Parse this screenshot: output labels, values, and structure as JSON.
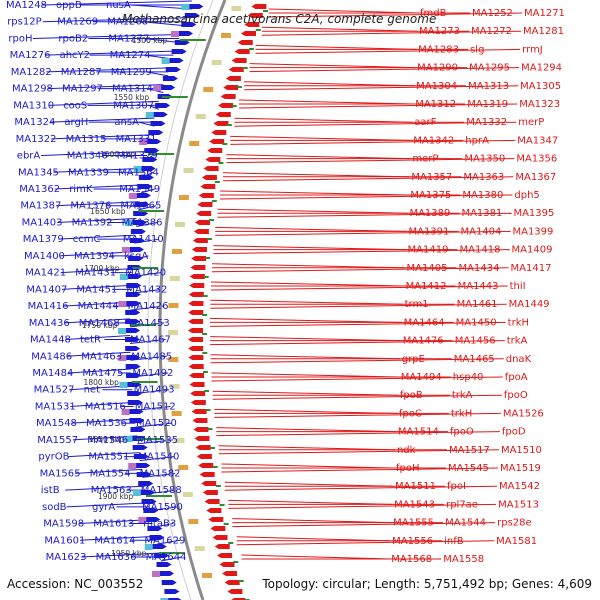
{
  "title": "Methanosarcina acetivorans C2A, complete genome",
  "accession": "Accession: NC_003552",
  "topology": "Topology: circular; Length: 5,751,492 bp; Genes: 4,609",
  "colors": {
    "left": "#1a1ad0",
    "right": "#e01818",
    "backbone": "#8a8a8a",
    "tick": "#2f8f2f"
  },
  "scale_ticks": [
    "1500 kbp",
    "1550 kbp",
    "1600 kbp",
    "1650 kbp",
    "1700 kbp",
    "1750 kbp",
    "1800 kbp",
    "1850 kbp",
    "1900 kbp",
    "1950 kbp"
  ],
  "left_labels": [
    "MA1248",
    "oppB",
    "nusA",
    "rps12P",
    "MA1269",
    "MA1268",
    "rpoH",
    "rpoB2",
    "MA1277",
    "MA1276",
    "ahcY2",
    "MA1274",
    "MA1282",
    "MA1287",
    "MA1299",
    "MA1298",
    "MA1297",
    "MA1314",
    "MA1310",
    "cooS",
    "MA1307",
    "MA1324",
    "argH",
    "ansA",
    "MA1322",
    "MA1315",
    "MA1331",
    "ebrA",
    "MA1346",
    "MA1329",
    "MA1345",
    "MA1339",
    "MA1364",
    "MA1362",
    "rimK",
    "MA1349",
    "MA1387",
    "MA1376",
    "MA1365",
    "MA1403",
    "MA1392",
    "MA1386",
    "MA1379",
    "ccmC",
    "MA1410",
    "MA1400",
    "MA1394",
    "ksgA",
    "MA1421",
    "MA1431",
    "MA1420",
    "MA1407",
    "MA1451",
    "MA1432",
    "MA1416",
    "MA1444",
    "MA1426",
    "MA1436",
    "MA1468",
    "MA1453",
    "MA1448",
    "tetR",
    "MA1467",
    "MA1486",
    "MA1463",
    "MA1485",
    "MA1484",
    "MA1475",
    "MA1492",
    "MA1527",
    "net",
    "MA1493",
    "MA1531",
    "MA1516",
    "MA1512",
    "MA1548",
    "MA1536",
    "MA1520",
    "MA1557",
    "MA1546",
    "MA1535",
    "pyrOB",
    "MA1551",
    "MA1540",
    "MA1565",
    "MA1554",
    "MA1582",
    "istB",
    "MA1563",
    "MA1588",
    "sodB",
    "gyrA",
    "MA1590",
    "MA1598",
    "MA1613",
    "mtaB3",
    "MA1601",
    "MA1614",
    "MA1629",
    "MA1623",
    "MA1636",
    "MA1644"
  ],
  "right_labels": [
    "fmdB",
    "MA1252",
    "MA1271",
    "MA1273",
    "MA1272",
    "MA1281",
    "MA1283",
    "slg",
    "rrmJ",
    "MA1290",
    "MA1295",
    "MA1294",
    "MA1304",
    "MA1313",
    "MA1305",
    "MA1312",
    "MA1319",
    "MA1323",
    "aarF",
    "MA1332",
    "merP",
    "MA1342",
    "hprA",
    "MA1347",
    "merP",
    "MA1350",
    "MA1356",
    "MA1357",
    "MA1363",
    "MA1367",
    "MA1375",
    "MA1380",
    "dph5",
    "MA1389",
    "MA1381",
    "MA1395",
    "MA1391",
    "MA1404",
    "MA1399",
    "MA1419",
    "MA1418",
    "MA1409",
    "MA1405",
    "MA1434",
    "MA1417",
    "MA1412",
    "MA1443",
    "thiI",
    "trm1",
    "MA1461",
    "MA1449",
    "MA1464",
    "MA1450",
    "trkH",
    "MA1476",
    "MA1456",
    "trkA",
    "grpE",
    "MA1465",
    "dnaK",
    "MA1494",
    "hsp40",
    "fpoA",
    "fpoB",
    "trkA",
    "fpoO",
    "fpoC",
    "trkH",
    "MA1526",
    "MA1514",
    "fpoO",
    "fpoD",
    "ndk",
    "MA1517",
    "MA1510",
    "fpoH",
    "MA1545",
    "MA1519",
    "MA1511",
    "fpoI",
    "MA1542",
    "MA1543",
    "rpl7ae",
    "MA1513",
    "MA1555",
    "MA1544",
    "rps28e",
    "MA1556",
    "infB",
    "MA1581",
    "MA1568",
    "MA1558"
  ]
}
